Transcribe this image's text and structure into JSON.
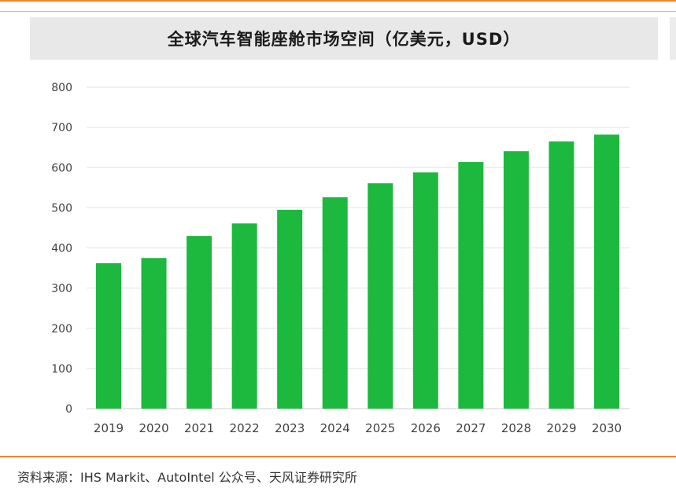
{
  "chart_data": {
    "type": "bar",
    "title": "全球汽车智能座舱市场空间（亿美元，USD）",
    "categories": [
      "2019",
      "2020",
      "2021",
      "2022",
      "2023",
      "2024",
      "2025",
      "2026",
      "2027",
      "2028",
      "2029",
      "2030"
    ],
    "values": [
      362,
      375,
      430,
      461,
      495,
      526,
      561,
      588,
      614,
      641,
      665,
      682
    ],
    "yticks": [
      0,
      100,
      200,
      300,
      400,
      500,
      600,
      700,
      800
    ],
    "ylim": [
      0,
      800
    ],
    "xlabel": "",
    "ylabel": "",
    "grid": true,
    "bar_color": "#1db83e"
  },
  "source": "资料来源：IHS Markit、AutoIntel 公众号、天风证券研究所"
}
